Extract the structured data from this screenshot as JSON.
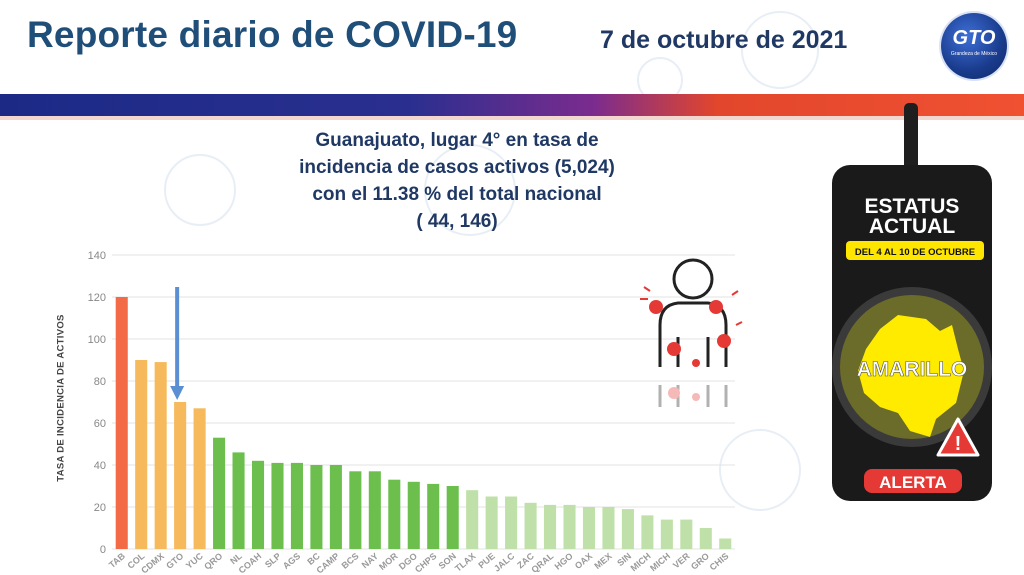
{
  "header": {
    "title": "Reporte diario de COVID-19",
    "date": "7 de octubre de 2021",
    "logo_text": "GTO",
    "logo_subtext": "Grandeza de México"
  },
  "headline": {
    "line1": "Guanajuato, lugar 4° en tasa de",
    "line2": "incidencia de casos activos (5,024)",
    "line3": "con el 11.38 % del total nacional",
    "line4": "( 44, 146)"
  },
  "status": {
    "title_line1": "ESTATUS",
    "title_line2": "ACTUAL",
    "period": "DEL 4 AL 10 DE OCTUBRE",
    "level": "AMARILLO",
    "alert": "ALERTA"
  },
  "colors": {
    "title": "#1f4e79",
    "top_bar": "#f26b5b",
    "high": "#f6b95b",
    "medium": "#6cbf4d",
    "low": "#bfe0a8",
    "arrow": "#5b8fd4",
    "semaforo_yellow": "#ffeb00"
  },
  "chart_data": {
    "type": "bar",
    "ylabel": "TASA DE INCIDENCIA DE ACTIVOS",
    "ylim": [
      0,
      140
    ],
    "yticks": [
      0,
      20,
      40,
      60,
      80,
      100,
      120,
      140
    ],
    "grid": true,
    "categories": [
      "TAB",
      "COL",
      "CDMX",
      "GTO",
      "YUC",
      "QRO",
      "NL",
      "COAH",
      "SLP",
      "AGS",
      "BC",
      "CAMP",
      "BCS",
      "NAY",
      "MOR",
      "DGO",
      "CHPS",
      "SON",
      "TLAX",
      "PUE",
      "JALC",
      "ZAC",
      "QRAL",
      "HGO",
      "OAX",
      "MEX",
      "SIN",
      "MICH",
      "MICH",
      "VER",
      "GRO",
      "CHIS"
    ],
    "values": [
      120,
      90,
      89,
      70,
      67,
      53,
      46,
      42,
      41,
      41,
      40,
      40,
      37,
      37,
      33,
      32,
      31,
      30,
      28,
      25,
      25,
      22,
      21,
      21,
      20,
      20,
      19,
      16,
      14,
      14,
      10,
      5
    ],
    "bar_colors": [
      "#f26b46",
      "#f6b95b",
      "#f6b95b",
      "#f6b95b",
      "#f6b95b",
      "#6cbf4d",
      "#6cbf4d",
      "#6cbf4d",
      "#6cbf4d",
      "#6cbf4d",
      "#6cbf4d",
      "#6cbf4d",
      "#6cbf4d",
      "#6cbf4d",
      "#6cbf4d",
      "#6cbf4d",
      "#6cbf4d",
      "#6cbf4d",
      "#bfe0a8",
      "#bfe0a8",
      "#bfe0a8",
      "#bfe0a8",
      "#bfe0a8",
      "#bfe0a8",
      "#bfe0a8",
      "#bfe0a8",
      "#bfe0a8",
      "#bfe0a8",
      "#bfe0a8",
      "#bfe0a8",
      "#bfe0a8",
      "#bfe0a8"
    ],
    "highlight": "GTO"
  }
}
